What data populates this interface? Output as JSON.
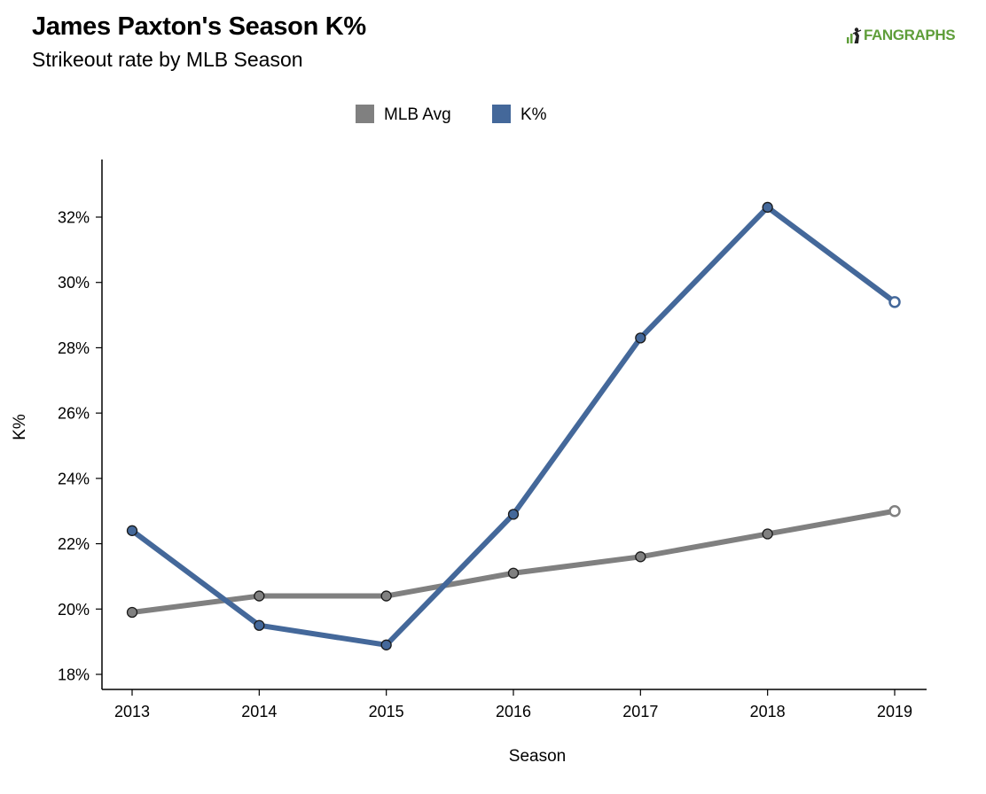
{
  "chart_data": {
    "type": "line",
    "title": "James Paxton's Season K%",
    "subtitle": "Strikeout rate by MLB Season",
    "xlabel": "Season",
    "ylabel": "K%",
    "categories": [
      "2013",
      "2014",
      "2015",
      "2016",
      "2017",
      "2018",
      "2019"
    ],
    "ylim": [
      17.5,
      33.7
    ],
    "yticks": [
      18,
      20,
      22,
      24,
      26,
      28,
      30,
      32
    ],
    "ytick_labels": [
      "18%",
      "20%",
      "22%",
      "24%",
      "26%",
      "28%",
      "30%",
      "32%"
    ],
    "grid": false,
    "legend_position": "top-center",
    "series": [
      {
        "name": "MLB Avg",
        "color": "#808080",
        "values": [
          19.9,
          20.4,
          20.4,
          21.1,
          21.6,
          22.3,
          23.0
        ],
        "last_point_open": true
      },
      {
        "name": "K%",
        "color": "#44689a",
        "values": [
          22.4,
          19.5,
          18.9,
          22.9,
          28.3,
          32.3,
          29.4
        ],
        "last_point_open": true
      }
    ]
  },
  "logo": {
    "text": "FANGRAPHS",
    "color": "#5f9e3a"
  }
}
